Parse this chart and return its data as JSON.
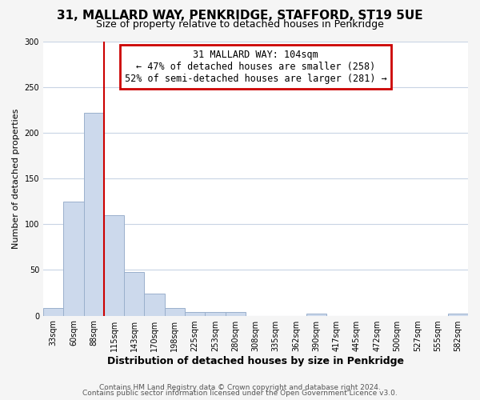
{
  "title1": "31, MALLARD WAY, PENKRIDGE, STAFFORD, ST19 5UE",
  "title2": "Size of property relative to detached houses in Penkridge",
  "xlabel": "Distribution of detached houses by size in Penkridge",
  "ylabel": "Number of detached properties",
  "footer1": "Contains HM Land Registry data © Crown copyright and database right 2024.",
  "footer2": "Contains public sector information licensed under the Open Government Licence v3.0.",
  "annotation_line1": "31 MALLARD WAY: 104sqm",
  "annotation_line2": "← 47% of detached houses are smaller (258)",
  "annotation_line3": "52% of semi-detached houses are larger (281) →",
  "bar_color": "#ccd9ec",
  "bar_edge_color": "#9ab0cc",
  "vline_color": "#cc0000",
  "annotation_box_edge_color": "#cc0000",
  "bin_labels": [
    "33sqm",
    "60sqm",
    "88sqm",
    "115sqm",
    "143sqm",
    "170sqm",
    "198sqm",
    "225sqm",
    "253sqm",
    "280sqm",
    "308sqm",
    "335sqm",
    "362sqm",
    "390sqm",
    "417sqm",
    "445sqm",
    "472sqm",
    "500sqm",
    "527sqm",
    "555sqm",
    "582sqm"
  ],
  "bar_heights": [
    8,
    125,
    222,
    110,
    48,
    24,
    8,
    4,
    4,
    4,
    0,
    0,
    0,
    2,
    0,
    0,
    0,
    0,
    0,
    0,
    2
  ],
  "vline_position": 2.5,
  "ylim": [
    0,
    300
  ],
  "yticks": [
    0,
    50,
    100,
    150,
    200,
    250,
    300
  ],
  "fig_bg_color": "#f5f5f5",
  "plot_bg_color": "#ffffff",
  "grid_color": "#c8d4e4",
  "title1_fontsize": 11,
  "title2_fontsize": 9,
  "ylabel_fontsize": 8,
  "xlabel_fontsize": 9,
  "tick_fontsize": 7,
  "footer_fontsize": 6.5
}
